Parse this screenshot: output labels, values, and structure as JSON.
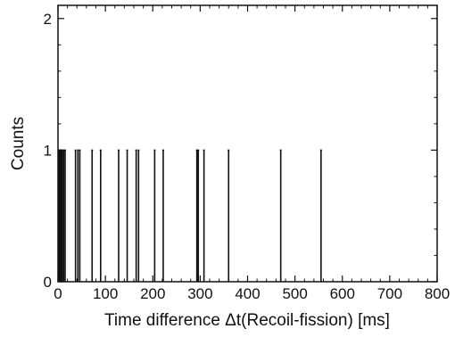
{
  "chart_data": {
    "type": "bar",
    "xlabel": "Time difference Δt(Recoil-fission) [ms]",
    "ylabel": "Counts",
    "xlim": [
      0,
      800
    ],
    "ylim": [
      0,
      2.1
    ],
    "x_ticks": [
      "0",
      "100",
      "200",
      "300",
      "400",
      "500",
      "600",
      "700",
      "800"
    ],
    "y_ticks": [
      "0",
      "1",
      "2"
    ],
    "grid": false,
    "legend": "none",
    "bar_color": "#111111",
    "events": [
      {
        "x": 1,
        "count": 1
      },
      {
        "x": 3,
        "count": 1
      },
      {
        "x": 5,
        "count": 1
      },
      {
        "x": 7,
        "count": 1
      },
      {
        "x": 9,
        "count": 1
      },
      {
        "x": 12,
        "count": 1
      },
      {
        "x": 15,
        "count": 1
      },
      {
        "x": 37,
        "count": 1
      },
      {
        "x": 42,
        "count": 1
      },
      {
        "x": 46,
        "count": 1
      },
      {
        "x": 72,
        "count": 1
      },
      {
        "x": 90,
        "count": 1
      },
      {
        "x": 128,
        "count": 1
      },
      {
        "x": 146,
        "count": 1
      },
      {
        "x": 165,
        "count": 1
      },
      {
        "x": 170,
        "count": 1
      },
      {
        "x": 204,
        "count": 1
      },
      {
        "x": 222,
        "count": 1
      },
      {
        "x": 293,
        "count": 1
      },
      {
        "x": 296,
        "count": 1
      },
      {
        "x": 308,
        "count": 1
      },
      {
        "x": 360,
        "count": 1
      },
      {
        "x": 470,
        "count": 1
      },
      {
        "x": 555,
        "count": 1
      }
    ]
  }
}
